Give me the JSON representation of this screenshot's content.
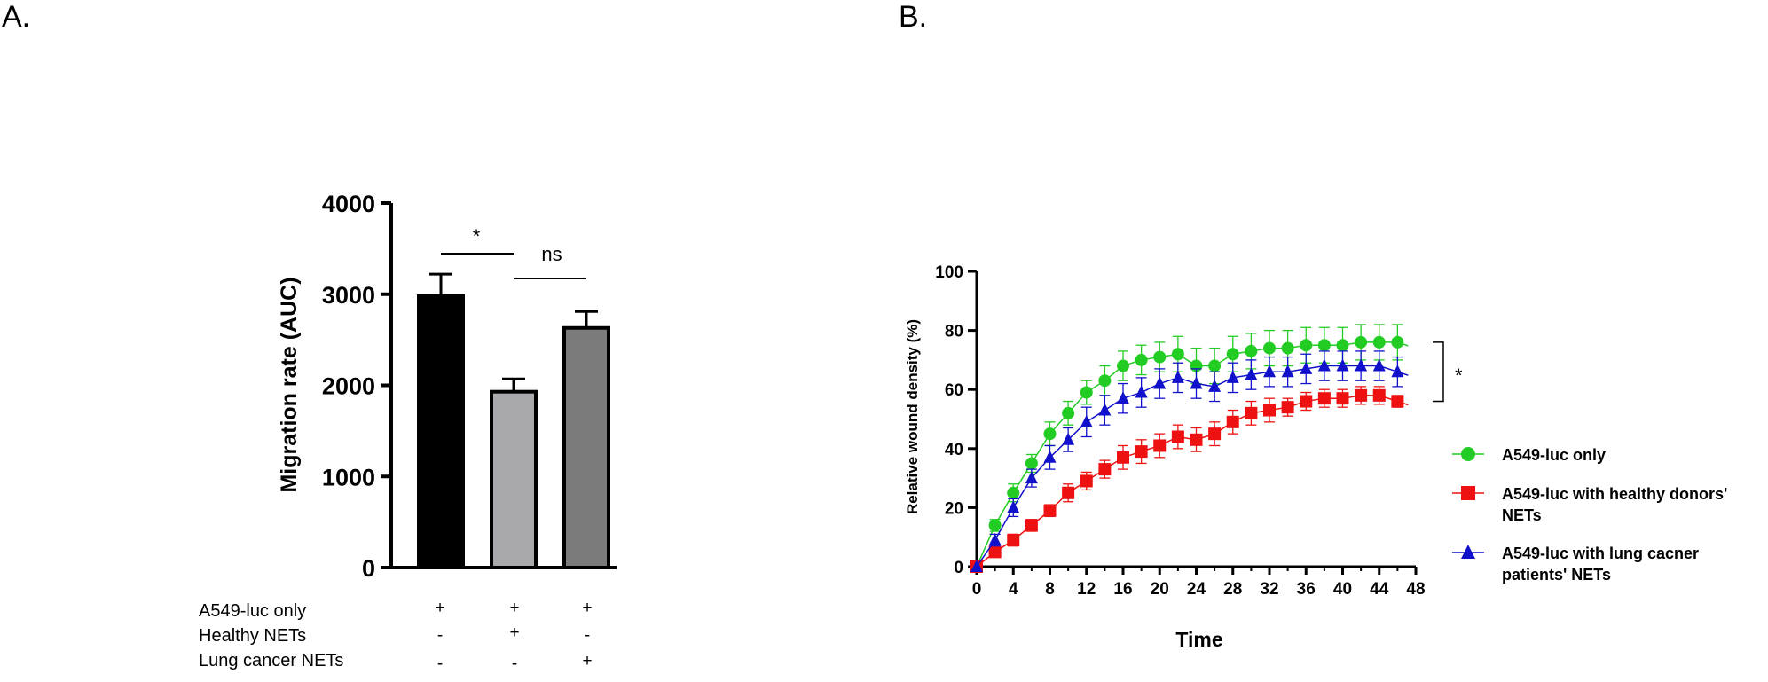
{
  "panels": {
    "a_label": "A.",
    "b_label": "B."
  },
  "chart_data": [
    {
      "type": "bar",
      "panel": "A.",
      "categories": [
        "A549-luc only",
        "Healthy NETs",
        "Lung cancer NETs"
      ],
      "values": [
        2980,
        1930,
        2630
      ],
      "errors": [
        240,
        140,
        180
      ],
      "colors": [
        "#000000",
        "#a9a9ad",
        "#7b7b7b"
      ],
      "ylabel": "Migration rate (AUC)",
      "ylim": [
        0,
        4000
      ],
      "yticks": [
        "0",
        "1000",
        "2000",
        "3000",
        "4000"
      ],
      "significance": [
        {
          "from": 0,
          "to": 1,
          "label": "*"
        },
        {
          "from": 1,
          "to": 2,
          "label": "ns"
        }
      ],
      "conditions": {
        "rows": [
          "A549-luc only",
          "Healthy NETs",
          "Lung cancer NETs"
        ],
        "matrix": [
          [
            "+",
            "+",
            "+"
          ],
          [
            "-",
            "+",
            "-"
          ],
          [
            "-",
            "-",
            "+"
          ]
        ]
      }
    },
    {
      "type": "line",
      "panel": "B.",
      "xlabel": "Time",
      "ylabel": "Relative wound density (%)",
      "xlim": [
        0,
        48
      ],
      "ylim": [
        0,
        100
      ],
      "xticks": [
        "0",
        "4",
        "8",
        "12",
        "16",
        "20",
        "24",
        "28",
        "32",
        "36",
        "40",
        "44",
        "48"
      ],
      "yticks": [
        "0",
        "20",
        "40",
        "60",
        "80",
        "100"
      ],
      "x": [
        0,
        2,
        4,
        6,
        8,
        10,
        12,
        14,
        16,
        18,
        20,
        22,
        24,
        26,
        28,
        30,
        32,
        34,
        36,
        38,
        40,
        42,
        44,
        46
      ],
      "series": [
        {
          "name": "A549-luc only",
          "color": "#22cc22",
          "marker": "circle",
          "values": [
            0,
            14,
            25,
            35,
            45,
            52,
            59,
            63,
            68,
            70,
            71,
            72,
            68,
            68,
            72,
            73,
            74,
            74,
            75,
            75,
            75,
            76,
            76,
            76
          ],
          "errors": [
            0,
            2,
            3,
            3,
            4,
            4,
            4,
            5,
            5,
            5,
            5,
            6,
            6,
            6,
            6,
            6,
            6,
            6,
            6,
            6,
            6,
            6,
            6,
            6
          ]
        },
        {
          "name": "A549-luc with healthy donors' NETs",
          "color": "#ee1111",
          "marker": "square",
          "values": [
            0,
            5,
            9,
            14,
            19,
            25,
            29,
            33,
            37,
            39,
            41,
            44,
            43,
            45,
            49,
            52,
            53,
            54,
            56,
            57,
            57,
            58,
            58,
            56
          ],
          "errors": [
            0,
            1,
            2,
            2,
            2,
            3,
            3,
            3,
            4,
            4,
            4,
            4,
            4,
            4,
            4,
            4,
            4,
            3,
            3,
            3,
            3,
            3,
            3,
            2
          ]
        },
        {
          "name": "A549-luc with lung cacner patients' NETs",
          "color": "#1111cc",
          "marker": "triangle",
          "values": [
            0,
            9,
            20,
            30,
            37,
            43,
            49,
            53,
            57,
            59,
            62,
            64,
            62,
            61,
            64,
            65,
            66,
            66,
            67,
            68,
            68,
            68,
            68,
            66
          ],
          "errors": [
            0,
            2,
            3,
            3,
            4,
            4,
            5,
            5,
            5,
            5,
            5,
            5,
            5,
            5,
            5,
            5,
            5,
            5,
            5,
            5,
            5,
            5,
            5,
            5
          ]
        }
      ],
      "significance": [
        {
          "label": "*",
          "between": [
            "A549-luc only",
            "A549-luc with healthy donors' NETs"
          ]
        }
      ],
      "legend": {
        "position": "right",
        "entries": [
          {
            "line1": "A549-luc only",
            "line2": ""
          },
          {
            "line1": "A549-luc with healthy donors'",
            "line2": "NETs"
          },
          {
            "line1": "A549-luc with lung cacner",
            "line2": "patients' NETs"
          }
        ]
      }
    }
  ]
}
